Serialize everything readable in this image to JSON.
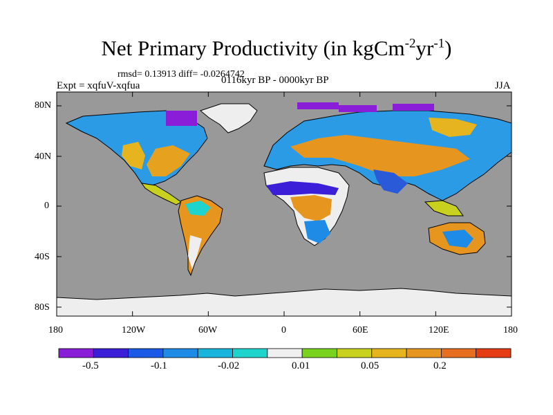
{
  "title": {
    "main": "Net Primary Productivity (in kgCm",
    "exp1": "-2",
    "mid": "yr",
    "exp2": "-1",
    "close": ")"
  },
  "stats": "rmsd= 0.13913 diff= -0.0264742",
  "experiment": "Expt = xqfuV-xqfua",
  "period": "0116kyr BP - 0000kyr BP",
  "season": "JJA",
  "lat_ticks": [
    "80N",
    "40N",
    "0",
    "40S",
    "80S"
  ],
  "lon_ticks": [
    "180",
    "120W",
    "60W",
    "0",
    "60E",
    "120E",
    "180"
  ],
  "colorbar": {
    "colors": [
      "#8a1ed8",
      "#3a1ed8",
      "#1a5ae6",
      "#1e8ce6",
      "#18b4dc",
      "#1ed4cc",
      "#f0f0f0",
      "#78d21e",
      "#c8d21e",
      "#e6b41e",
      "#e6961e",
      "#e66e1e",
      "#e63c14"
    ],
    "labels": [
      "-0.5",
      "-0.1",
      "-0.02",
      "0.01",
      "0.05",
      "0.2"
    ]
  },
  "colors": {
    "ocean": "#999999",
    "ice": "#eeeeee"
  }
}
